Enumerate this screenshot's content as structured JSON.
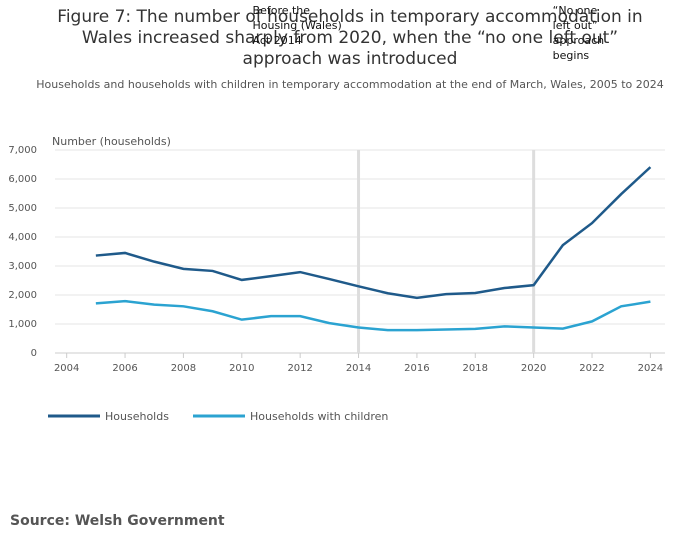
{
  "chart_data": {
    "type": "line",
    "title": "Figure 7: The number of households in temporary accommodation in Wales increased sharply from 2020, when the “no one left out” approach was introduced",
    "subtitle": "Households and households with children in temporary accommodation at the end of March, Wales, 2005 to 2024",
    "y_label": "Number (households)",
    "x": [
      2005,
      2006,
      2007,
      2008,
      2009,
      2010,
      2011,
      2012,
      2013,
      2014,
      2015,
      2016,
      2017,
      2018,
      2019,
      2020,
      2021,
      2022,
      2023,
      2024
    ],
    "series": [
      {
        "name": "Households",
        "color": "#1f5a8a",
        "values": [
          3360,
          3450,
          3150,
          2900,
          2830,
          2520,
          2650,
          2790,
          2550,
          2300,
          2060,
          1900,
          2030,
          2070,
          2240,
          2340,
          3720,
          4480,
          5480,
          6410
        ]
      },
      {
        "name": "Households with children",
        "color": "#2ba3d1",
        "values": [
          1710,
          1790,
          1670,
          1610,
          1440,
          1150,
          1270,
          1270,
          1030,
          880,
          790,
          790,
          810,
          830,
          920,
          880,
          840,
          1090,
          1610,
          1770
        ]
      }
    ],
    "xlim": [
      2003.6,
      2024.5
    ],
    "ylim": [
      0,
      7000
    ],
    "xticks": [
      2004,
      2006,
      2008,
      2010,
      2012,
      2014,
      2016,
      2018,
      2020,
      2022,
      2024
    ],
    "yticks": [
      0,
      {
        "value": 1000,
        "label": "1,000"
      },
      {
        "value": 2000,
        "label": "2,000"
      },
      {
        "value": 3000,
        "label": "3,000"
      },
      {
        "value": 4000,
        "label": "4,000"
      },
      {
        "value": 5000,
        "label": "5,000"
      },
      {
        "value": 6000,
        "label": "6,000"
      },
      {
        "value": 7000,
        "label": "7,000"
      }
    ],
    "grid": true,
    "annotations": [
      {
        "text": "Before the Housing (Wales) Act 2014",
        "x": 2014
      },
      {
        "text": "“No one left out” approach begins",
        "x": 2020
      }
    ],
    "source": "Source: Welsh Government"
  }
}
